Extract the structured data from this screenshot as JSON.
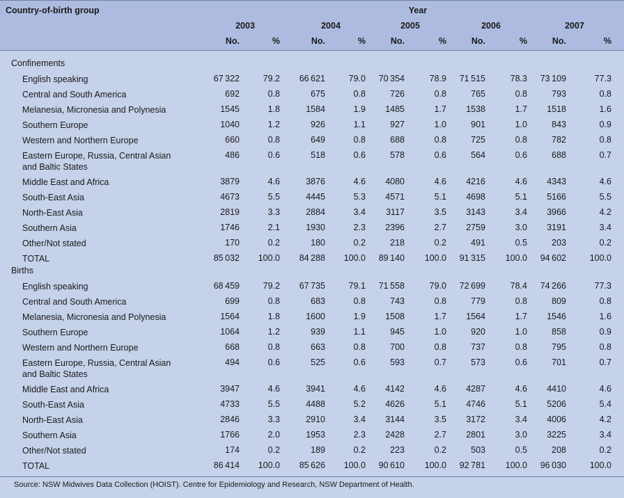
{
  "header": {
    "group_label": "Country-of-birth group",
    "year_label": "Year",
    "years": [
      "2003",
      "2004",
      "2005",
      "2006",
      "2007"
    ],
    "no_label": "No.",
    "pct_label": "%"
  },
  "sections": [
    {
      "title": "Confinements",
      "rows": [
        {
          "label": [
            "English speaking"
          ],
          "values": [
            "67 322",
            "79.2",
            "66 621",
            "79.0",
            "70 354",
            "78.9",
            "71 515",
            "78.3",
            "73 109",
            "77.3"
          ]
        },
        {
          "label": [
            "Central and South America"
          ],
          "values": [
            "692",
            "0.8",
            "675",
            "0.8",
            "726",
            "0.8",
            "765",
            "0.8",
            "793",
            "0.8"
          ]
        },
        {
          "label": [
            "Melanesia, Micronesia and Polynesia"
          ],
          "values": [
            "1545",
            "1.8",
            "1584",
            "1.9",
            "1485",
            "1.7",
            "1538",
            "1.7",
            "1518",
            "1.6"
          ]
        },
        {
          "label": [
            "Southern Europe"
          ],
          "values": [
            "1040",
            "1.2",
            "926",
            "1.1",
            "927",
            "1.0",
            "901",
            "1.0",
            "843",
            "0.9"
          ]
        },
        {
          "label": [
            "Western and Northern Europe"
          ],
          "values": [
            "660",
            "0.8",
            "649",
            "0.8",
            "688",
            "0.8",
            "725",
            "0.8",
            "782",
            "0.8"
          ]
        },
        {
          "label": [
            "Eastern Europe, Russia, Central Asian",
            "and Baltic States"
          ],
          "values": [
            "486",
            "0.6",
            "518",
            "0.6",
            "578",
            "0.6",
            "564",
            "0.6",
            "688",
            "0.7"
          ]
        },
        {
          "label": [
            "Middle East and Africa"
          ],
          "values": [
            "3879",
            "4.6",
            "3876",
            "4.6",
            "4080",
            "4.6",
            "4216",
            "4.6",
            "4343",
            "4.6"
          ]
        },
        {
          "label": [
            "South-East Asia"
          ],
          "values": [
            "4673",
            "5.5",
            "4445",
            "5.3",
            "4571",
            "5.1",
            "4698",
            "5.1",
            "5166",
            "5.5"
          ]
        },
        {
          "label": [
            "North-East Asia"
          ],
          "values": [
            "2819",
            "3.3",
            "2884",
            "3.4",
            "3117",
            "3.5",
            "3143",
            "3.4",
            "3966",
            "4.2"
          ]
        },
        {
          "label": [
            "Southern Asia"
          ],
          "values": [
            "1746",
            "2.1",
            "1930",
            "2.3",
            "2396",
            "2.7",
            "2759",
            "3.0",
            "3191",
            "3.4"
          ]
        },
        {
          "label": [
            "Other/Not stated"
          ],
          "values": [
            "170",
            "0.2",
            "180",
            "0.2",
            "218",
            "0.2",
            "491",
            "0.5",
            "203",
            "0.2"
          ]
        },
        {
          "label": [
            "TOTAL"
          ],
          "values": [
            "85 032",
            "100.0",
            "84 288",
            "100.0",
            "89 140",
            "100.0",
            "91 315",
            "100.0",
            "94 602",
            "100.0"
          ]
        }
      ]
    },
    {
      "title": "Births",
      "rows": [
        {
          "label": [
            "English speaking"
          ],
          "values": [
            "68 459",
            "79.2",
            "67 735",
            "79.1",
            "71 558",
            "79.0",
            "72 699",
            "78.4",
            "74 266",
            "77.3"
          ]
        },
        {
          "label": [
            "Central and South America"
          ],
          "values": [
            "699",
            "0.8",
            "683",
            "0.8",
            "743",
            "0.8",
            "779",
            "0.8",
            "809",
            "0.8"
          ]
        },
        {
          "label": [
            "Melanesia, Micronesia and Polynesia"
          ],
          "values": [
            "1564",
            "1.8",
            "1600",
            "1.9",
            "1508",
            "1.7",
            "1564",
            "1.7",
            "1546",
            "1.6"
          ]
        },
        {
          "label": [
            "Southern Europe"
          ],
          "values": [
            "1064",
            "1.2",
            "939",
            "1.1",
            "945",
            "1.0",
            "920",
            "1.0",
            "858",
            "0.9"
          ]
        },
        {
          "label": [
            "Western and Northern Europe"
          ],
          "values": [
            "668",
            "0.8",
            "663",
            "0.8",
            "700",
            "0.8",
            "737",
            "0.8",
            "795",
            "0.8"
          ]
        },
        {
          "label": [
            "Eastern Europe, Russia, Central Asian",
            "and Baltic States"
          ],
          "values": [
            "494",
            "0.6",
            "525",
            "0.6",
            "593",
            "0.7",
            "573",
            "0.6",
            "701",
            "0.7"
          ]
        },
        {
          "label": [
            "Middle East and Africa"
          ],
          "values": [
            "3947",
            "4.6",
            "3941",
            "4.6",
            "4142",
            "4.6",
            "4287",
            "4.6",
            "4410",
            "4.6"
          ]
        },
        {
          "label": [
            "South-East Asia"
          ],
          "values": [
            "4733",
            "5.5",
            "4488",
            "5.2",
            "4626",
            "5.1",
            "4746",
            "5.1",
            "5206",
            "5.4"
          ]
        },
        {
          "label": [
            "North-East Asia"
          ],
          "values": [
            "2846",
            "3.3",
            "2910",
            "3.4",
            "3144",
            "3.5",
            "3172",
            "3.4",
            "4006",
            "4.2"
          ]
        },
        {
          "label": [
            "Southern Asia"
          ],
          "values": [
            "1766",
            "2.0",
            "1953",
            "2.3",
            "2428",
            "2.7",
            "2801",
            "3.0",
            "3225",
            "3.4"
          ]
        },
        {
          "label": [
            "Other/Not stated"
          ],
          "values": [
            "174",
            "0.2",
            "189",
            "0.2",
            "223",
            "0.2",
            "503",
            "0.5",
            "208",
            "0.2"
          ]
        },
        {
          "label": [
            "TOTAL"
          ],
          "values": [
            "86 414",
            "100.0",
            "85 626",
            "100.0",
            "90 610",
            "100.0",
            "92 781",
            "100.0",
            "96 030",
            "100.0"
          ]
        }
      ]
    }
  ],
  "source": "Source: NSW Midwives Data Collection (HOIST). Centre for Epidemiology and Research, NSW Department of Health.",
  "colors": {
    "background": "#c6d1ea",
    "header_band": "#adbbe0",
    "rule": "#6f7ea8"
  }
}
